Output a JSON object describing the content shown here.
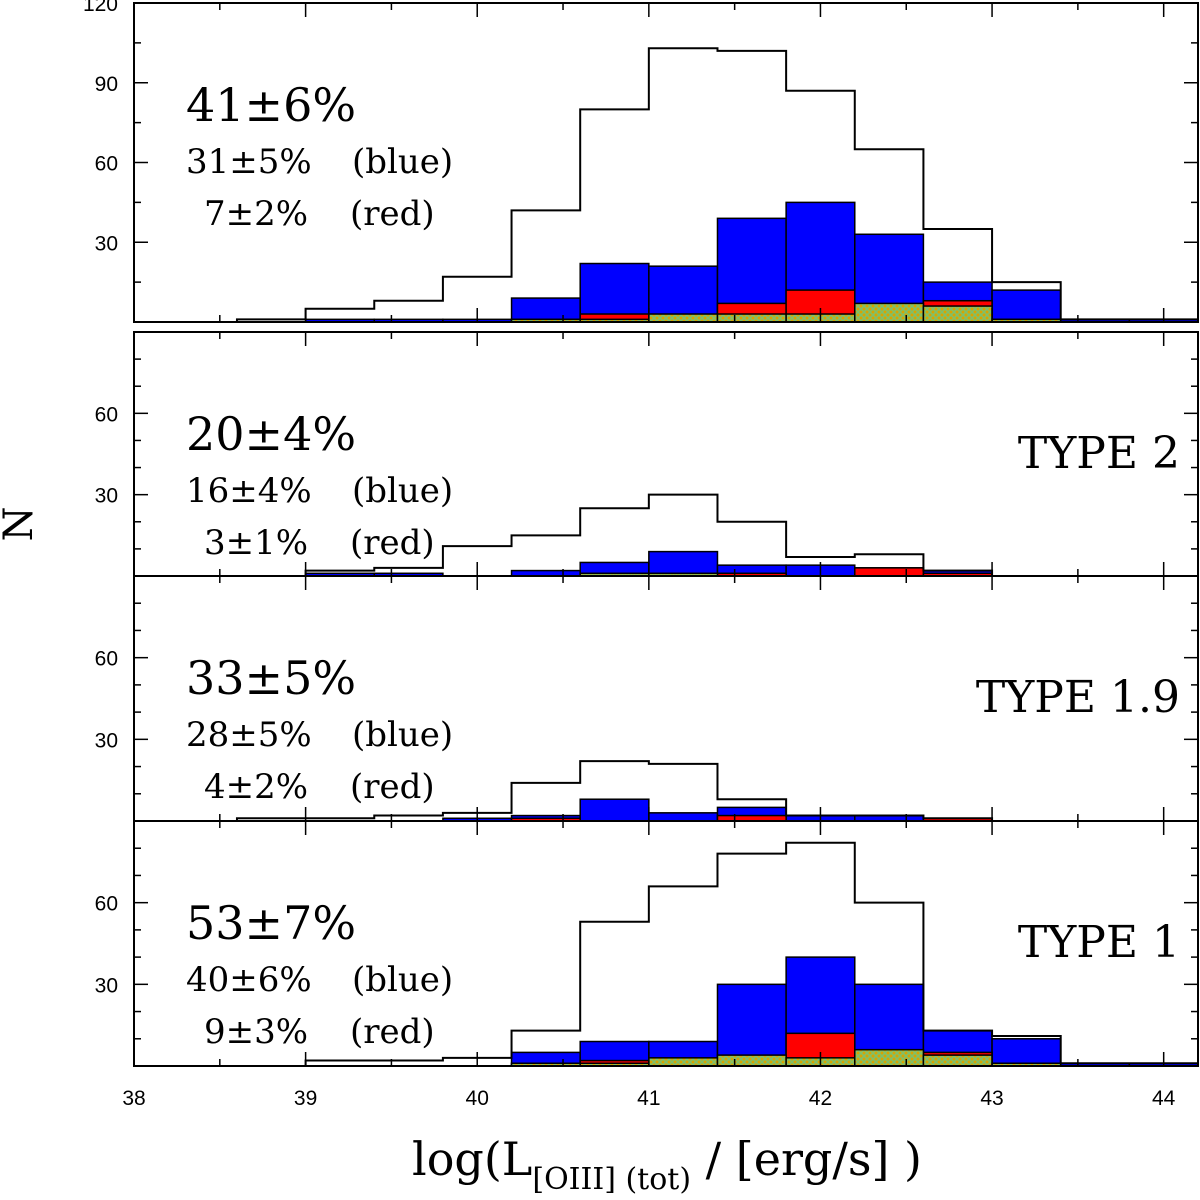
{
  "chart_data": {
    "type": "histogram",
    "xlabel_main": "log(L",
    "xlabel_sub": "[OIII] (tot)",
    "xlabel_tail": " / [erg/s] )",
    "ylabel": "N",
    "xlim": [
      38,
      44.2
    ],
    "xticks": [
      38,
      39,
      40,
      41,
      42,
      43,
      44
    ],
    "bin_edges": [
      38.6,
      39.0,
      39.4,
      39.8,
      40.2,
      40.6,
      41.0,
      41.4,
      41.8,
      42.2,
      42.6,
      43.0,
      43.4,
      43.8,
      44.2
    ],
    "panels": [
      {
        "id": "all",
        "label": "",
        "ylim": [
          0,
          120
        ],
        "yticks": [
          30,
          60,
          90,
          120
        ],
        "total_pct": "41±6%",
        "blue_pct": "31±5%",
        "blue_tag": "(blue)",
        "red_pct": "7±2%",
        "red_tag": "(red)",
        "total": [
          1,
          5,
          8,
          17,
          42,
          80,
          103,
          102,
          87,
          65,
          35,
          15,
          1,
          1
        ],
        "blue": [
          0,
          1,
          1,
          1,
          9,
          22,
          21,
          39,
          45,
          33,
          15,
          12,
          1,
          1
        ],
        "red": [
          0,
          0,
          0,
          0,
          1,
          3,
          2,
          7,
          12,
          3,
          8,
          1,
          0,
          0
        ],
        "hatched": [
          0,
          0,
          0,
          0,
          1,
          1,
          3,
          3,
          3,
          7,
          6,
          1,
          0,
          0
        ]
      },
      {
        "id": "type2",
        "label": "TYPE 2",
        "ylim": [
          0,
          90
        ],
        "yticks": [
          30,
          60
        ],
        "total_pct": "20±4%",
        "blue_pct": "16±4%",
        "blue_tag": "(blue)",
        "red_pct": "3±1%",
        "red_tag": "(red)",
        "total": [
          0,
          2,
          3,
          11,
          15,
          25,
          30,
          20,
          7,
          8,
          2,
          0,
          0,
          0
        ],
        "blue": [
          0,
          1,
          1,
          0,
          2,
          5,
          9,
          4,
          4,
          3,
          2,
          0,
          0,
          0
        ],
        "red": [
          0,
          0,
          0,
          0,
          0,
          0,
          0,
          1,
          0,
          3,
          1,
          0,
          0,
          0
        ],
        "hatched": [
          0,
          0,
          0,
          0,
          0,
          1,
          1,
          0,
          0,
          0,
          0,
          0,
          0,
          0
        ]
      },
      {
        "id": "type19",
        "label": "TYPE 1.9",
        "ylim": [
          0,
          90
        ],
        "yticks": [
          30,
          60
        ],
        "total_pct": "33±5%",
        "blue_pct": "28±5%",
        "blue_tag": "(blue)",
        "red_pct": "4±2%",
        "red_tag": "(red)",
        "total": [
          1,
          1,
          2,
          3,
          14,
          22,
          21,
          8,
          2,
          2,
          1,
          0,
          0,
          0
        ],
        "blue": [
          0,
          0,
          0,
          1,
          2,
          8,
          3,
          5,
          2,
          2,
          1,
          0,
          0,
          0
        ],
        "red": [
          0,
          0,
          0,
          0,
          1,
          0,
          0,
          2,
          0,
          0,
          1,
          0,
          0,
          0
        ],
        "hatched": [
          0,
          0,
          0,
          0,
          0,
          0,
          0,
          0,
          0,
          0,
          0,
          0,
          0,
          0
        ]
      },
      {
        "id": "type1",
        "label": "TYPE 1",
        "ylim": [
          0,
          90
        ],
        "yticks": [
          30,
          60
        ],
        "total_pct": "53±7%",
        "blue_pct": "40±6%",
        "blue_tag": "(blue)",
        "red_pct": "9±3%",
        "red_tag": "(red)",
        "total": [
          0,
          2,
          2,
          3,
          13,
          53,
          66,
          78,
          82,
          60,
          13,
          11,
          1,
          1
        ],
        "blue": [
          0,
          0,
          0,
          0,
          5,
          9,
          9,
          30,
          40,
          30,
          13,
          10,
          1,
          1
        ],
        "red": [
          0,
          0,
          0,
          0,
          1,
          2,
          2,
          2,
          12,
          2,
          5,
          1,
          0,
          0
        ],
        "hatched": [
          0,
          0,
          0,
          0,
          1,
          1,
          3,
          4,
          3,
          6,
          4,
          1,
          0,
          0
        ]
      }
    ]
  },
  "colors": {
    "blue": "#0000ff",
    "red": "#ff0000",
    "hatch_a": "#d9a400",
    "hatch_b": "#7fc06a"
  }
}
